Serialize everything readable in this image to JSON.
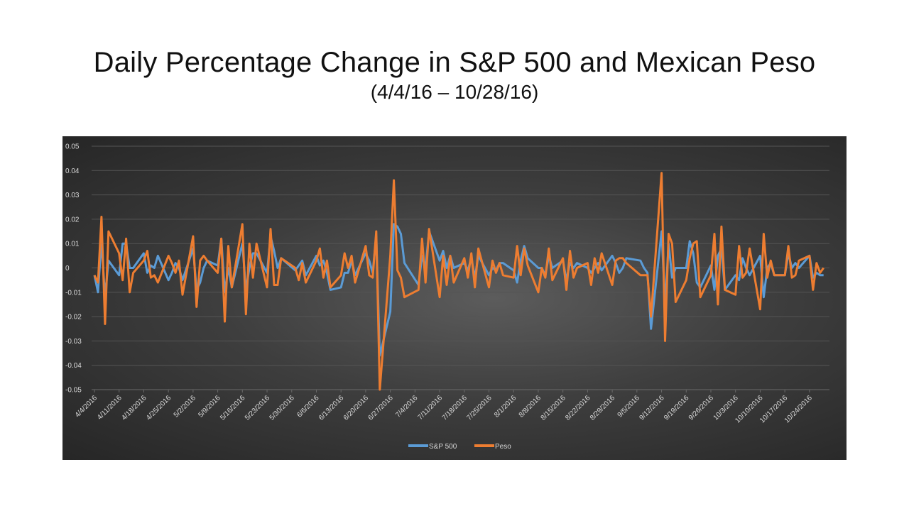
{
  "title": "Daily Percentage Change in S&P 500 and Mexican Peso",
  "subtitle": "(4/4/16 – 10/28/16)",
  "chart_data": {
    "type": "line",
    "title": "Daily Percentage Change in S&P 500 and Mexican Peso",
    "subtitle": "(4/4/16 – 10/28/16)",
    "xlabel": "",
    "ylabel": "",
    "ylim": [
      -0.05,
      0.05
    ],
    "y_ticks": [
      "0.05",
      "0.04",
      "0.03",
      "0.02",
      "0.01",
      "0",
      "-0.01",
      "-0.02",
      "-0.03",
      "-0.04",
      "-0.05"
    ],
    "x_ticks": [
      "4/4/2016",
      "4/11/2016",
      "4/18/2016",
      "4/25/2016",
      "5/2/2016",
      "5/9/2016",
      "5/16/2016",
      "5/23/2016",
      "5/30/2016",
      "6/6/2016",
      "6/13/2016",
      "6/20/2016",
      "6/27/2016",
      "7/4/2016",
      "7/11/2016",
      "7/18/2016",
      "7/25/2016",
      "8/1/2016",
      "8/8/2016",
      "8/15/2016",
      "8/22/2016",
      "8/29/2016",
      "9/5/2016",
      "9/12/2016",
      "9/19/2016",
      "9/26/2016",
      "10/3/2016",
      "10/10/2016",
      "10/17/2016",
      "10/24/2016"
    ],
    "grid": true,
    "legend_position": "bottom",
    "x": [
      "4/4",
      "4/5",
      "4/6",
      "4/7",
      "4/8",
      "4/11",
      "4/12",
      "4/13",
      "4/14",
      "4/15",
      "4/18",
      "4/19",
      "4/20",
      "4/21",
      "4/22",
      "4/25",
      "4/26",
      "4/27",
      "4/28",
      "4/29",
      "5/2",
      "5/3",
      "5/4",
      "5/5",
      "5/6",
      "5/9",
      "5/10",
      "5/11",
      "5/12",
      "5/13",
      "5/16",
      "5/17",
      "5/18",
      "5/19",
      "5/20",
      "5/23",
      "5/24",
      "5/25",
      "5/26",
      "5/27",
      "5/31",
      "6/1",
      "6/2",
      "6/3",
      "6/6",
      "6/7",
      "6/8",
      "6/9",
      "6/10",
      "6/13",
      "6/14",
      "6/15",
      "6/16",
      "6/17",
      "6/20",
      "6/21",
      "6/22",
      "6/23",
      "6/24",
      "6/27",
      "6/28",
      "6/29",
      "6/30",
      "7/1",
      "7/5",
      "7/6",
      "7/7",
      "7/8",
      "7/11",
      "7/12",
      "7/13",
      "7/14",
      "7/15",
      "7/18",
      "7/19",
      "7/20",
      "7/21",
      "7/22",
      "7/25",
      "7/26",
      "7/27",
      "7/28",
      "7/29",
      "8/1",
      "8/2",
      "8/3",
      "8/4",
      "8/5",
      "8/8",
      "8/9",
      "8/10",
      "8/11",
      "8/12",
      "8/15",
      "8/16",
      "8/17",
      "8/18",
      "8/19",
      "8/22",
      "8/23",
      "8/24",
      "8/25",
      "8/26",
      "8/29",
      "8/30",
      "8/31",
      "9/1",
      "9/2",
      "9/6",
      "9/7",
      "9/8",
      "9/9",
      "9/12",
      "9/13",
      "9/14",
      "9/15",
      "9/16",
      "9/19",
      "9/20",
      "9/21",
      "9/22",
      "9/23",
      "9/26",
      "9/27",
      "9/28",
      "9/29",
      "9/30",
      "10/3",
      "10/4",
      "10/5",
      "10/6",
      "10/7",
      "10/10",
      "10/11",
      "10/12",
      "10/13",
      "10/14",
      "10/17",
      "10/18",
      "10/19",
      "10/20",
      "10/21",
      "10/24",
      "10/25",
      "10/26",
      "10/27",
      "10/28"
    ],
    "series": [
      {
        "name": "S&P 500",
        "color": "#5b9bd5",
        "values": [
          -0.003,
          -0.01,
          0.011,
          -0.012,
          0.003,
          -0.003,
          0.01,
          0.01,
          0.0,
          0.0,
          0.006,
          -0.002,
          0.001,
          0.0,
          0.005,
          -0.005,
          -0.002,
          0.002,
          0.0,
          -0.005,
          0.008,
          -0.009,
          -0.006,
          0.0,
          0.003,
          0.001,
          0.012,
          -0.01,
          0.0,
          -0.008,
          0.01,
          -0.009,
          0.0,
          0.006,
          0.006,
          -0.002,
          0.013,
          0.007,
          0.0,
          0.004,
          -0.001,
          0.001,
          0.003,
          -0.003,
          0.005,
          0.001,
          0.003,
          -0.002,
          -0.009,
          -0.008,
          -0.002,
          -0.002,
          0.003,
          -0.003,
          0.006,
          0.003,
          -0.002,
          0.013,
          -0.036,
          -0.018,
          0.018,
          0.017,
          0.014,
          0.002,
          -0.007,
          0.005,
          0.0,
          0.015,
          0.003,
          0.007,
          0.0,
          0.005,
          0.0,
          0.002,
          -0.001,
          0.004,
          -0.004,
          0.005,
          -0.003,
          0.0,
          -0.001,
          0.002,
          0.002,
          -0.001,
          -0.006,
          0.003,
          0.009,
          0.004,
          0.0,
          0.0,
          -0.003,
          0.005,
          0.0,
          0.003,
          -0.005,
          0.002,
          0.0,
          0.002,
          0.0,
          -0.002,
          0.0,
          0.002,
          -0.001,
          0.005,
          0.002,
          -0.002,
          0.0,
          0.004,
          0.003,
          0.0,
          -0.002,
          -0.025,
          0.015,
          -0.015,
          0.01,
          -0.004,
          0.0,
          0.0,
          0.011,
          0.006,
          -0.006,
          -0.008,
          0.001,
          -0.009,
          0.005,
          0.008,
          -0.009,
          -0.003,
          -0.005,
          0.004,
          0.0,
          -0.003,
          0.005,
          -0.012,
          0.0,
          0.002,
          -0.003,
          -0.003,
          0.006,
          0.0,
          0.002,
          0.0,
          0.005,
          -0.004,
          -0.002,
          -0.003,
          -0.003
        ]
      },
      {
        "name": "Peso",
        "color": "#ed7d31",
        "values": [
          -0.003,
          -0.006,
          0.021,
          -0.023,
          0.015,
          0.006,
          -0.005,
          0.012,
          -0.01,
          -0.002,
          0.003,
          0.007,
          -0.004,
          -0.003,
          -0.006,
          0.005,
          0.002,
          -0.002,
          0.003,
          -0.011,
          0.013,
          -0.016,
          0.003,
          0.005,
          0.003,
          -0.002,
          0.012,
          -0.022,
          0.009,
          -0.008,
          0.018,
          -0.019,
          0.01,
          -0.004,
          0.01,
          -0.008,
          0.016,
          -0.007,
          -0.007,
          0.004,
          0.0,
          -0.005,
          0.002,
          -0.006,
          0.003,
          0.008,
          -0.004,
          0.003,
          -0.008,
          -0.003,
          0.006,
          0.0,
          0.005,
          -0.006,
          0.009,
          -0.003,
          -0.004,
          0.015,
          -0.05,
          0.005,
          0.036,
          -0.001,
          -0.004,
          -0.012,
          -0.009,
          0.012,
          -0.006,
          0.016,
          -0.012,
          0.005,
          -0.007,
          0.005,
          -0.006,
          0.004,
          -0.004,
          0.006,
          -0.008,
          0.008,
          -0.008,
          0.003,
          -0.002,
          0.002,
          -0.003,
          -0.004,
          0.009,
          -0.003,
          0.008,
          0.001,
          -0.01,
          0.0,
          -0.004,
          0.008,
          -0.005,
          0.004,
          -0.009,
          0.007,
          -0.004,
          0.0,
          0.002,
          -0.007,
          0.004,
          -0.002,
          0.006,
          -0.007,
          0.003,
          0.004,
          0.004,
          0.002,
          -0.003,
          -0.003,
          -0.003,
          -0.02,
          0.039,
          -0.03,
          0.014,
          0.01,
          -0.014,
          -0.005,
          0.004,
          0.01,
          0.011,
          -0.012,
          -0.003,
          0.014,
          -0.015,
          0.017,
          -0.009,
          -0.011,
          0.009,
          -0.004,
          -0.002,
          0.008,
          -0.017,
          0.014,
          -0.004,
          0.003,
          -0.003,
          -0.003,
          0.009,
          -0.004,
          -0.003,
          0.003,
          0.005,
          -0.009,
          0.002,
          -0.002,
          0.0
        ]
      }
    ]
  }
}
